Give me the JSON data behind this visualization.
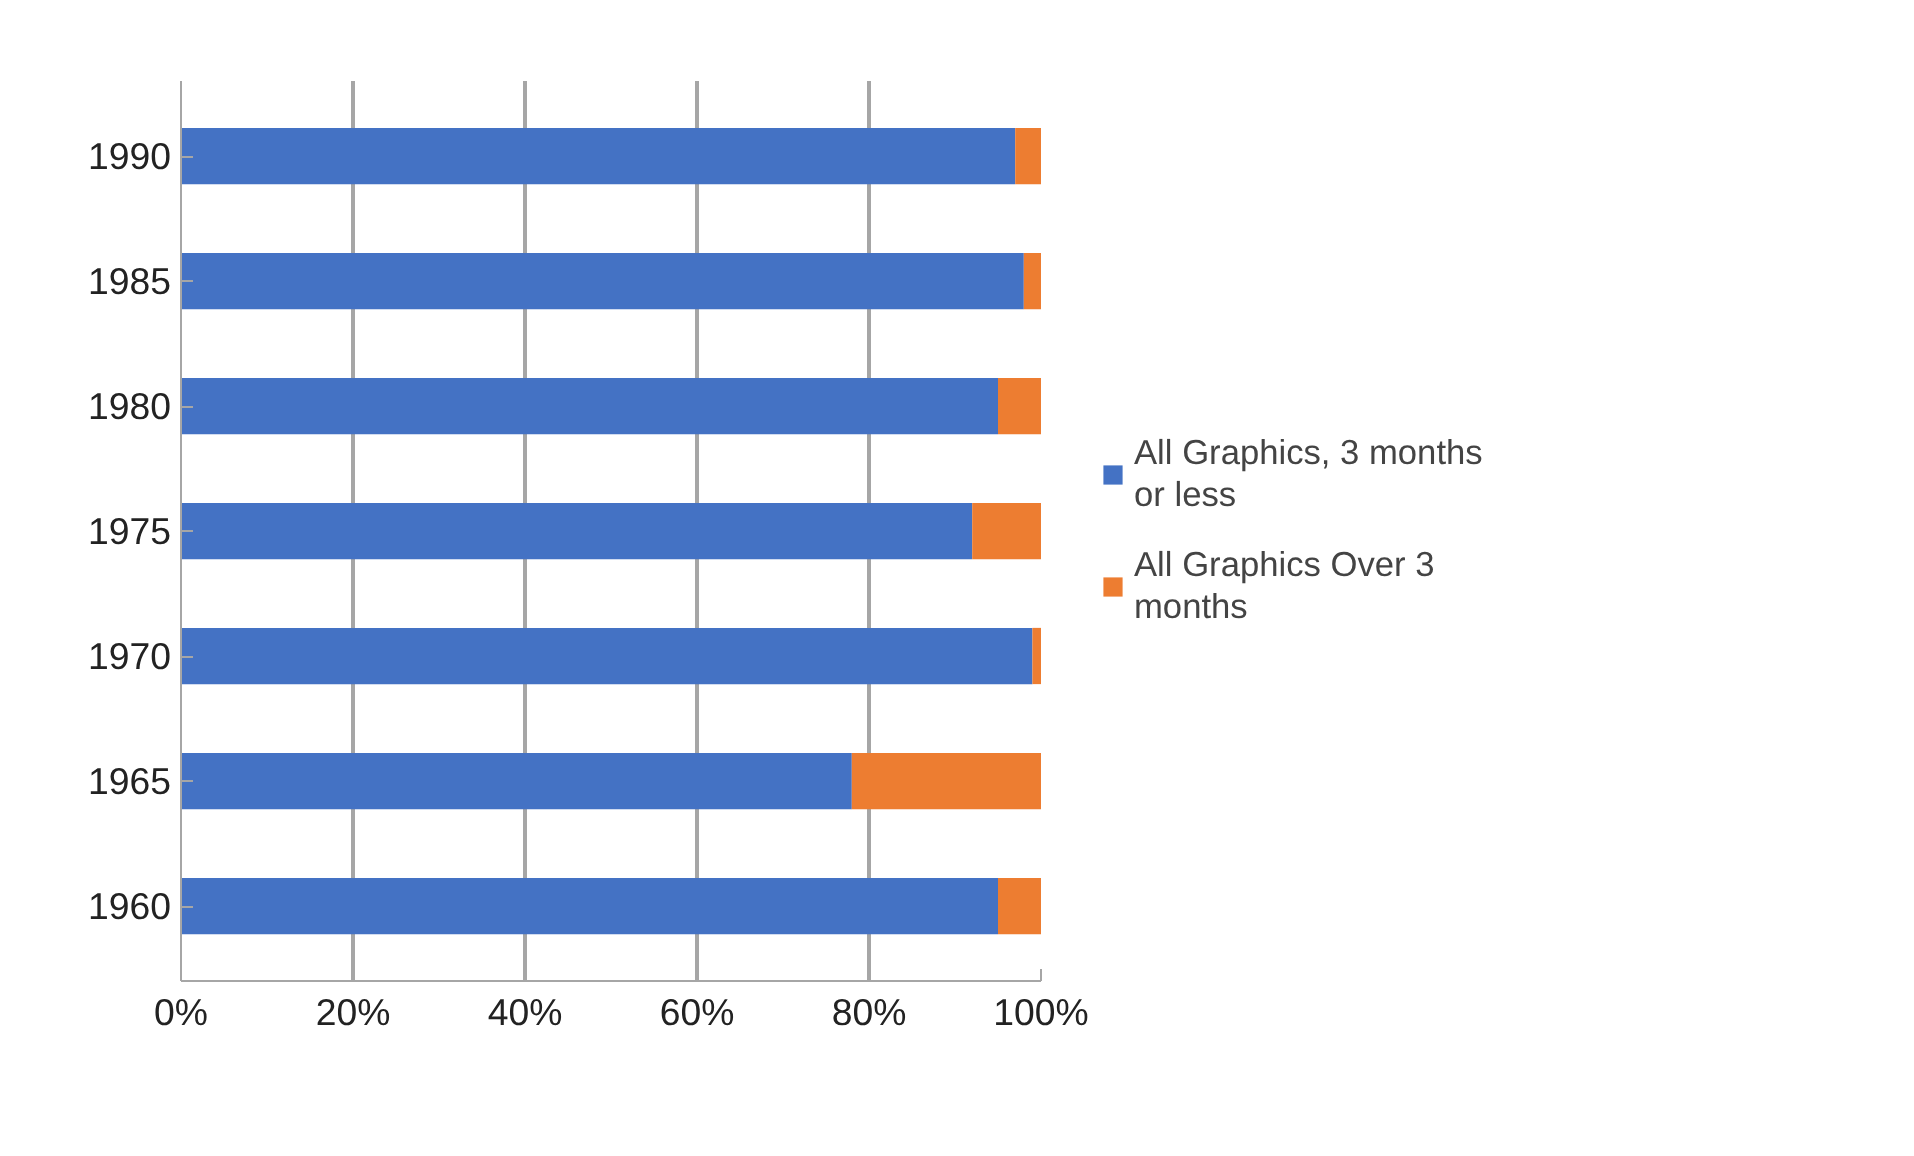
{
  "chart_data": {
    "type": "bar",
    "orientation": "horizontal",
    "stacked": true,
    "categories": [
      "1990",
      "1985",
      "1980",
      "1975",
      "1970",
      "1965",
      "1960"
    ],
    "series": [
      {
        "name": "All Graphics, 3 months or less",
        "color": "#4472c4",
        "values": [
          97,
          98,
          95,
          92,
          99,
          78,
          95
        ]
      },
      {
        "name": "All Graphics Over 3 months",
        "color": "#ed7d31",
        "values": [
          3,
          2,
          5,
          8,
          1,
          22,
          5
        ]
      }
    ],
    "xlim": [
      0,
      100
    ],
    "xticks": [
      {
        "value": 0,
        "label": "0%"
      },
      {
        "value": 20,
        "label": "20%"
      },
      {
        "value": 40,
        "label": "40%"
      },
      {
        "value": 60,
        "label": "60%"
      },
      {
        "value": 80,
        "label": "80%"
      },
      {
        "value": 100,
        "label": "100%"
      }
    ],
    "grid": "x",
    "legend": "right"
  }
}
